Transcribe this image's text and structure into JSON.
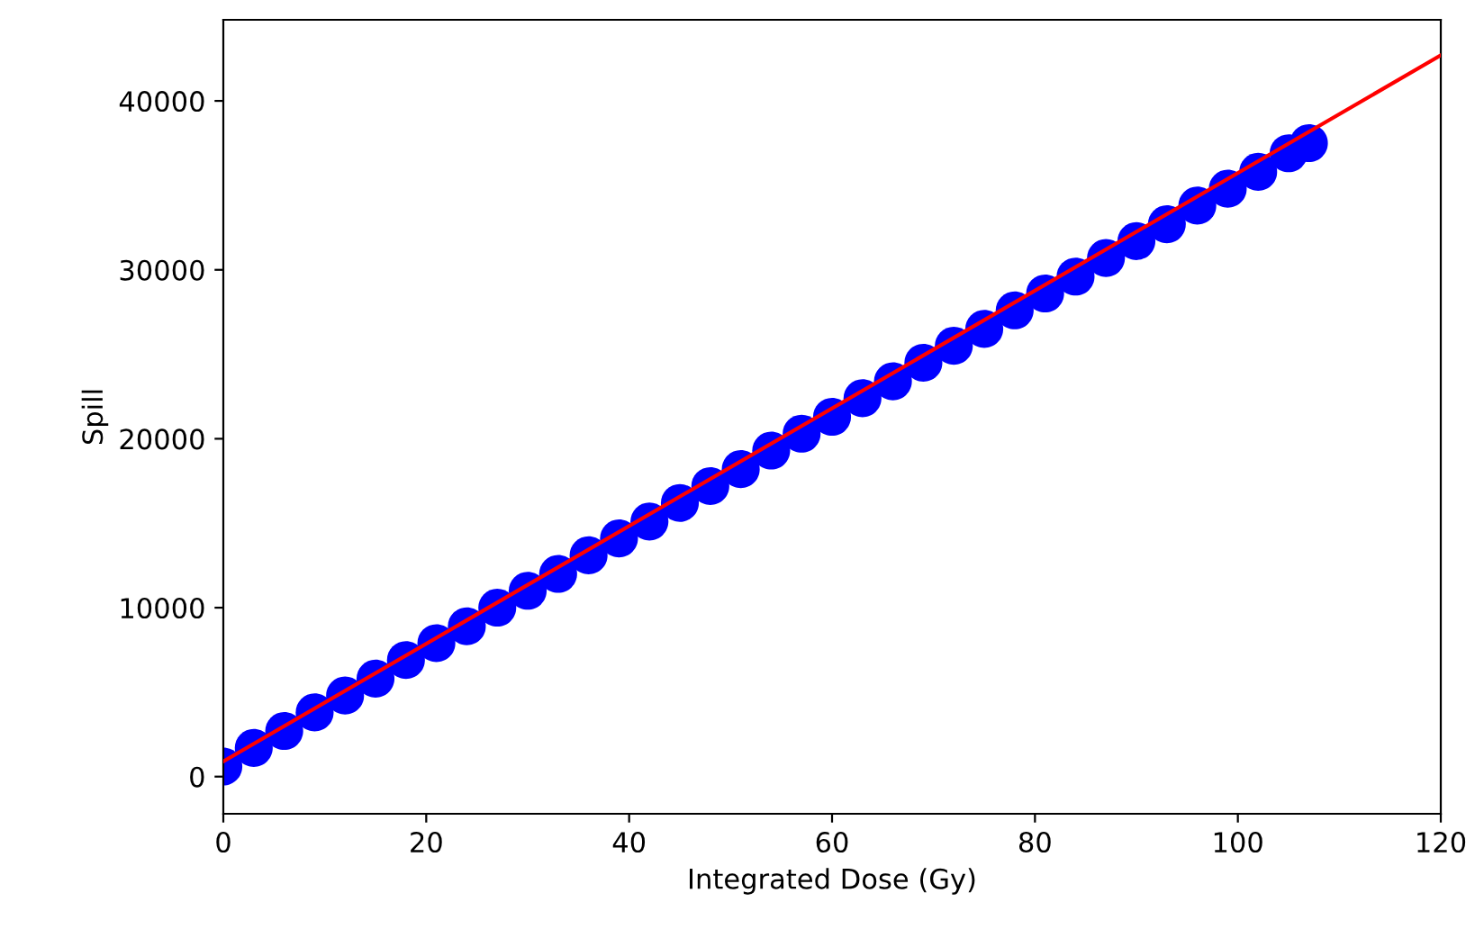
{
  "chart_data": {
    "type": "scatter",
    "xlabel": "Integrated Dose (Gy)",
    "ylabel": "Spill",
    "xlim": [
      0,
      120
    ],
    "ylim": [
      -2200,
      44800
    ],
    "xticks": [
      0,
      20,
      40,
      60,
      80,
      100,
      120
    ],
    "yticks": [
      0,
      10000,
      20000,
      30000,
      40000
    ],
    "grid": false,
    "legend": false,
    "marker": "circle",
    "series": [
      {
        "color": "#0000ff",
        "x": [
          0,
          3,
          6,
          9,
          12,
          15,
          18,
          21,
          24,
          27,
          30,
          33,
          36,
          39,
          42,
          45,
          48,
          51,
          54,
          57,
          60,
          63,
          66,
          69,
          72,
          75,
          78,
          81,
          84,
          87,
          90,
          93,
          96,
          99,
          102,
          105,
          107
        ],
        "values": [
          600,
          1700,
          2700,
          3800,
          4800,
          5800,
          6900,
          7900,
          8900,
          10000,
          11000,
          12000,
          13100,
          14100,
          15100,
          16200,
          17200,
          18200,
          19300,
          20300,
          21300,
          22400,
          23400,
          24500,
          25500,
          26500,
          27600,
          28600,
          29600,
          30700,
          31700,
          32700,
          33800,
          34800,
          35800,
          36900,
          37500
        ]
      },
      {
        "type": "line",
        "color": "#ff0000",
        "x": [
          0,
          120
        ],
        "values": [
          900,
          42700
        ],
        "line_style": "solid",
        "marker": "none"
      }
    ]
  }
}
